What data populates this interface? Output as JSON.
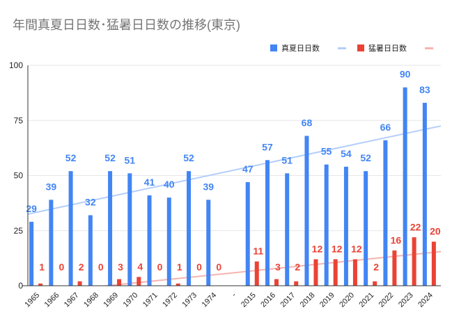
{
  "chart_data": {
    "type": "bar",
    "title": "年間真夏日日数･猛暑日日数の推移(東京)",
    "categories": [
      "1965",
      "1966",
      "1967",
      "1968",
      "1969",
      "1970",
      "1971",
      "1972",
      "1973",
      "1974",
      "-",
      "2015",
      "2016",
      "2017",
      "2018",
      "2019",
      "2020",
      "2021",
      "2022",
      "2023",
      "2024"
    ],
    "series": [
      {
        "name": "真夏日日数",
        "color": "#4285f4",
        "trend_color": "#b3cefb",
        "values": [
          29,
          39,
          52,
          32,
          52,
          51,
          41,
          40,
          52,
          39,
          null,
          47,
          57,
          51,
          68,
          55,
          54,
          52,
          66,
          90,
          83
        ],
        "trendline": {
          "start": 32.5,
          "end": 72.5
        }
      },
      {
        "name": "猛暑日日数",
        "color": "#ea4335",
        "trend_color": "#f6b3ae",
        "values": [
          1,
          0,
          2,
          0,
          3,
          4,
          0,
          1,
          0,
          0,
          null,
          11,
          3,
          2,
          12,
          12,
          12,
          2,
          16,
          22,
          20
        ],
        "trendline": {
          "start": -3.7,
          "end": 15.5
        }
      }
    ],
    "ylim": [
      0,
      100
    ],
    "yticks": [
      0,
      25,
      50,
      75,
      100
    ],
    "grid": true,
    "legend": "top-right",
    "data_labels": true
  }
}
